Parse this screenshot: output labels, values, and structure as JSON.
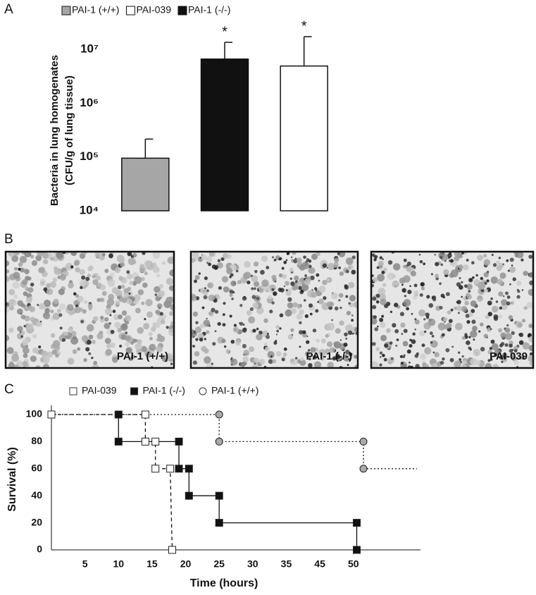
{
  "panels": [
    "A",
    "B",
    "C"
  ],
  "chart_data": [
    {
      "type": "bar",
      "yscale": "log",
      "legend": "top",
      "ylabel": [
        "Bacteria in lung homogenates",
        "(CFU/g of lung tissue)"
      ],
      "categories": [
        null,
        null,
        null
      ],
      "series": [
        {
          "name": "PAI-1 (+/+)",
          "color": "#a6a6a6",
          "values": [
            95000,
            null,
            null
          ],
          "errors": [
            120000,
            null,
            null
          ],
          "annotations": [
            null,
            null,
            null
          ]
        },
        {
          "name": "PAI-039",
          "color": "#ffffff",
          "values": [
            null,
            null,
            4900000
          ],
          "errors": [
            null,
            null,
            12300000
          ],
          "annotations": [
            null,
            null,
            "*"
          ]
        },
        {
          "name": "PAI-1 (-/-)",
          "color": "#111111",
          "values": [
            null,
            6600000,
            null
          ],
          "errors": [
            null,
            6900000,
            null
          ],
          "annotations": [
            null,
            "*",
            null
          ]
        }
      ],
      "ylim": [
        10000,
        20000000
      ],
      "yticks": [
        {
          "value": 10000,
          "label": "10⁴"
        },
        {
          "value": 100000,
          "label": "10⁵"
        },
        {
          "value": 1000000,
          "label": "10⁶"
        },
        {
          "value": 10000000,
          "label": "10⁷"
        }
      ],
      "grid": false
    },
    {
      "type": "step",
      "legend": "top",
      "xlabel": "Time (hours)",
      "ylabel": "Survival (%)",
      "series": [
        {
          "name": "PAI-1 (+/+)",
          "color": "#aaaaaa",
          "marker": "circle",
          "linestyle": "dotted",
          "x": [
            0,
            25,
            25,
            51.5,
            51.5
          ],
          "y": [
            100,
            100,
            80,
            80,
            60
          ]
        },
        {
          "name": "PAI-039",
          "color": "#ffffff",
          "marker": "square",
          "linestyle": "dashed",
          "x": [
            0,
            14,
            14,
            15.5,
            15.5,
            17.7,
            18
          ],
          "y": [
            100,
            100,
            80,
            80,
            60,
            60,
            0
          ]
        },
        {
          "name": "PAI-1 (-/-)",
          "color": "#111111",
          "marker": "square",
          "linestyle": "solid",
          "x": [
            10,
            10,
            19,
            19,
            20.5,
            20.5,
            25,
            25,
            50.5,
            50.5
          ],
          "y": [
            100,
            80,
            80,
            60,
            60,
            40,
            40,
            20,
            20,
            0
          ]
        }
      ],
      "xlim": [
        0,
        60
      ],
      "ylim": [
        0,
        100
      ],
      "xticks": [
        5,
        10,
        15,
        20,
        25,
        30,
        35,
        45,
        50
      ],
      "yticks": [
        0,
        20,
        40,
        60,
        80,
        100
      ],
      "grid": false
    }
  ],
  "micrographs": [
    {
      "label": "PAI-1 (+/+)"
    },
    {
      "label": "PAI-1 (-/-)"
    },
    {
      "label": "PAI-039"
    }
  ]
}
